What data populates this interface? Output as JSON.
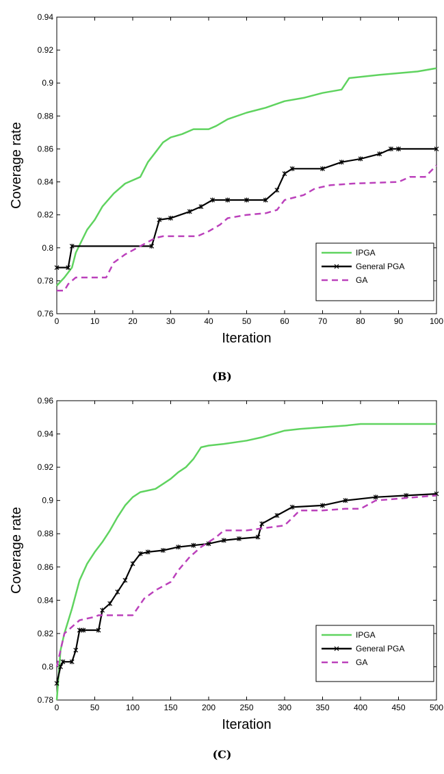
{
  "chart_data": [
    {
      "type": "line",
      "xlabel": "Iteration",
      "ylabel": "Coverage rate",
      "xlim": [
        0,
        100
      ],
      "ylim": [
        0.76,
        0.94
      ],
      "xticks": [
        0,
        10,
        20,
        30,
        40,
        50,
        60,
        70,
        80,
        90,
        100
      ],
      "yticks": [
        0.76,
        0.78,
        0.8,
        0.82,
        0.84,
        0.86,
        0.88,
        0.9,
        0.92,
        0.94
      ],
      "legend_position": "lower-right",
      "grid": false,
      "series": [
        {
          "name": "IPGA",
          "color": "#5fd35f",
          "style": "solid",
          "marker": "none",
          "x": [
            0,
            2,
            4,
            5,
            8,
            10,
            12,
            15,
            18,
            22,
            24,
            26,
            28,
            30,
            33,
            36,
            40,
            42,
            45,
            50,
            55,
            60,
            65,
            70,
            75,
            77,
            85,
            95,
            100
          ],
          "y": [
            0.777,
            0.782,
            0.788,
            0.797,
            0.811,
            0.817,
            0.825,
            0.833,
            0.839,
            0.843,
            0.852,
            0.858,
            0.864,
            0.867,
            0.869,
            0.872,
            0.872,
            0.874,
            0.878,
            0.882,
            0.885,
            0.889,
            0.891,
            0.894,
            0.896,
            0.903,
            0.905,
            0.907,
            0.909
          ]
        },
        {
          "name": "General PGA",
          "color": "#000000",
          "style": "solid",
          "marker": "star",
          "x": [
            0,
            3,
            4,
            25,
            27,
            30,
            35,
            38,
            41,
            45,
            50,
            55,
            58,
            60,
            62,
            70,
            75,
            80,
            85,
            88,
            90,
            100
          ],
          "y": [
            0.788,
            0.788,
            0.801,
            0.801,
            0.817,
            0.818,
            0.822,
            0.825,
            0.829,
            0.829,
            0.829,
            0.829,
            0.835,
            0.845,
            0.848,
            0.848,
            0.852,
            0.854,
            0.857,
            0.86,
            0.86,
            0.86
          ]
        },
        {
          "name": "GA",
          "color": "#bb40bb",
          "style": "dashed",
          "marker": "none",
          "x": [
            0,
            2,
            3,
            5,
            13,
            15,
            18,
            22,
            26,
            28,
            37,
            40,
            43,
            45,
            50,
            55,
            58,
            60,
            65,
            68,
            72,
            78,
            90,
            93,
            97,
            100
          ],
          "y": [
            0.774,
            0.774,
            0.778,
            0.782,
            0.782,
            0.791,
            0.796,
            0.801,
            0.806,
            0.807,
            0.807,
            0.81,
            0.814,
            0.818,
            0.82,
            0.821,
            0.823,
            0.829,
            0.832,
            0.836,
            0.838,
            0.839,
            0.84,
            0.843,
            0.843,
            0.85
          ]
        }
      ]
    },
    {
      "type": "line",
      "xlabel": "Iteration",
      "ylabel": "Coverage rate",
      "xlim": [
        0,
        500
      ],
      "ylim": [
        0.78,
        0.96
      ],
      "xticks": [
        0,
        50,
        100,
        150,
        200,
        250,
        300,
        350,
        400,
        450,
        500
      ],
      "yticks": [
        0.78,
        0.8,
        0.82,
        0.84,
        0.86,
        0.88,
        0.9,
        0.92,
        0.94,
        0.96
      ],
      "legend_position": "lower-right",
      "grid": false,
      "series": [
        {
          "name": "IPGA",
          "color": "#5fd35f",
          "style": "solid",
          "marker": "none",
          "x": [
            0,
            5,
            10,
            20,
            30,
            40,
            50,
            60,
            70,
            80,
            90,
            100,
            110,
            120,
            130,
            140,
            150,
            160,
            170,
            180,
            190,
            200,
            220,
            250,
            270,
            300,
            320,
            350,
            380,
            400,
            450,
            500
          ],
          "y": [
            0.78,
            0.81,
            0.82,
            0.835,
            0.852,
            0.862,
            0.869,
            0.875,
            0.882,
            0.89,
            0.897,
            0.902,
            0.905,
            0.906,
            0.907,
            0.91,
            0.913,
            0.917,
            0.92,
            0.925,
            0.932,
            0.933,
            0.934,
            0.936,
            0.938,
            0.942,
            0.943,
            0.944,
            0.945,
            0.946,
            0.946,
            0.946
          ]
        },
        {
          "name": "General PGA",
          "color": "#000000",
          "style": "solid",
          "marker": "star",
          "x": [
            0,
            5,
            8,
            20,
            25,
            30,
            35,
            55,
            60,
            70,
            80,
            90,
            100,
            110,
            120,
            140,
            160,
            180,
            200,
            220,
            240,
            265,
            270,
            290,
            310,
            350,
            380,
            420,
            460,
            500
          ],
          "y": [
            0.79,
            0.8,
            0.803,
            0.803,
            0.81,
            0.822,
            0.822,
            0.822,
            0.834,
            0.838,
            0.845,
            0.852,
            0.862,
            0.868,
            0.869,
            0.87,
            0.872,
            0.873,
            0.874,
            0.876,
            0.877,
            0.878,
            0.886,
            0.891,
            0.896,
            0.897,
            0.9,
            0.902,
            0.903,
            0.904
          ]
        },
        {
          "name": "GA",
          "color": "#bb40bb",
          "style": "dashed",
          "marker": "none",
          "x": [
            0,
            10,
            20,
            30,
            40,
            50,
            55,
            60,
            100,
            115,
            130,
            150,
            160,
            175,
            190,
            210,
            220,
            250,
            300,
            320,
            350,
            380,
            400,
            420,
            500
          ],
          "y": [
            0.8,
            0.82,
            0.824,
            0.828,
            0.829,
            0.83,
            0.831,
            0.831,
            0.831,
            0.841,
            0.846,
            0.851,
            0.858,
            0.866,
            0.872,
            0.878,
            0.882,
            0.882,
            0.885,
            0.894,
            0.894,
            0.895,
            0.895,
            0.9,
            0.903
          ]
        }
      ]
    }
  ],
  "captions": {
    "b": "(B)",
    "c": "(C)"
  }
}
